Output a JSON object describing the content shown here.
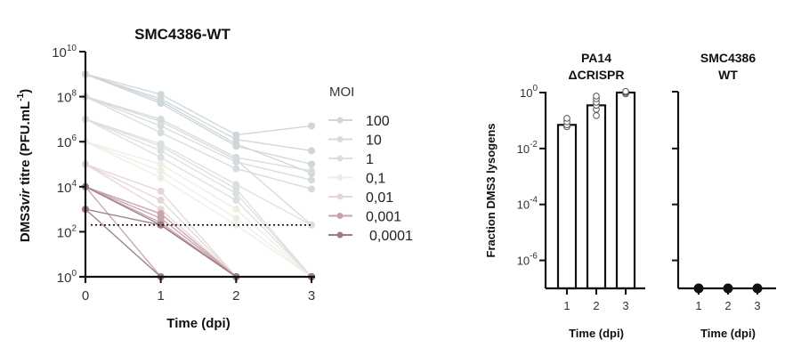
{
  "chart_data": [
    {
      "type": "line",
      "title": "SMC4386-WT",
      "xlabel": "Time (dpi)",
      "ylabel_prefix": "DMS3",
      "ylabel_italic": "vir",
      "ylabel_suffix": " titre (PFU.mL",
      "ylabel_sup": "-1",
      "ylabel_end": ")",
      "yscale": "log10",
      "ylim_exp": [
        0,
        10
      ],
      "yticks": [
        {
          "base": "10",
          "exp": "0"
        },
        {
          "base": "10",
          "exp": "2"
        },
        {
          "base": "10",
          "exp": "4"
        },
        {
          "base": "10",
          "exp": "6"
        },
        {
          "base": "10",
          "exp": "8"
        },
        {
          "base": "10",
          "exp": "10"
        }
      ],
      "x": [
        0,
        1,
        2,
        3
      ],
      "xticks": [
        "0",
        "1",
        "2",
        "3"
      ],
      "detection_limit_exp": 2.3,
      "legend_title": "MOI",
      "legend_position": "right",
      "series": [
        {
          "name": "100",
          "color": "#cfd6da",
          "replicates": [
            [
              9,
              8.1,
              6.3,
              6.7
            ],
            [
              9,
              7.9,
              6.1,
              5.6
            ],
            [
              9,
              7.7,
              5.8,
              5.0
            ],
            [
              9,
              7.8,
              5.9,
              4.6
            ]
          ]
        },
        {
          "name": "10",
          "color": "#d6dbdd",
          "replicates": [
            [
              8,
              7.0,
              5.3,
              4.7
            ],
            [
              8,
              6.7,
              5.1,
              4.3
            ],
            [
              8,
              6.4,
              4.8,
              3.9
            ],
            [
              8,
              6.9,
              5.2,
              2.3
            ]
          ]
        },
        {
          "name": "1",
          "color": "#dcdfe0",
          "replicates": [
            [
              7,
              5.9,
              4.1,
              2.3
            ],
            [
              7,
              5.6,
              3.7,
              0
            ],
            [
              7,
              5.3,
              3.4,
              0
            ],
            [
              7,
              5.8,
              3.9,
              0
            ]
          ]
        },
        {
          "name": "0,1",
          "color": "#efece4",
          "replicates": [
            [
              6,
              5.0,
              3.0,
              0
            ],
            [
              6,
              4.7,
              2.6,
              0
            ],
            [
              6,
              4.4,
              2.3,
              0
            ]
          ]
        },
        {
          "name": "0,01",
          "color": "#e6d7d7",
          "replicates": [
            [
              5,
              3.8,
              0,
              0
            ],
            [
              5,
              3.4,
              0,
              0
            ],
            [
              5,
              3.0,
              0,
              0
            ]
          ]
        },
        {
          "name": "0,001",
          "color": "#c9a3ab",
          "replicates": [
            [
              4,
              2.8,
              0,
              0
            ],
            [
              4,
              2.6,
              0,
              0
            ],
            [
              4,
              2.4,
              0,
              0
            ],
            [
              4,
              0,
              0,
              0
            ]
          ]
        },
        {
          "name": "0,0001",
          "color": "#9d7b85",
          "replicates": [
            [
              3,
              2.3,
              0,
              0
            ],
            [
              3,
              0,
              0,
              0
            ],
            [
              4,
              2.3,
              0,
              0
            ]
          ]
        }
      ]
    },
    {
      "type": "bar",
      "title_line1": "PA14",
      "title_line2": "ΔCRISPR",
      "ylabel": "Fraction DMS3 lysogens",
      "xlabel": "Time (dpi)",
      "yscale": "log10",
      "ylim_exp": [
        -7,
        0
      ],
      "yticks": [
        {
          "base": "10",
          "exp": "0"
        },
        {
          "base": "10",
          "exp": "-2"
        },
        {
          "base": "10",
          "exp": "-4"
        },
        {
          "base": "10",
          "exp": "-6"
        }
      ],
      "categories": [
        "1",
        "2",
        "3"
      ],
      "values": [
        0.07,
        0.35,
        1.0
      ],
      "points": [
        [
          0.06,
          0.07,
          0.09,
          0.12
        ],
        [
          0.15,
          0.25,
          0.35,
          0.45,
          0.6,
          0.75
        ],
        [
          0.9,
          1.0,
          1.05,
          1.1
        ]
      ]
    },
    {
      "type": "scatter",
      "title_line1": "SMC4386",
      "title_line2": "WT",
      "xlabel": "Time (dpi)",
      "yscale": "log10",
      "ylim_exp": [
        -7,
        0
      ],
      "categories": [
        "1",
        "2",
        "3"
      ],
      "values": [
        0,
        0,
        0
      ],
      "note": "no lysogens detected (points on baseline)"
    }
  ]
}
